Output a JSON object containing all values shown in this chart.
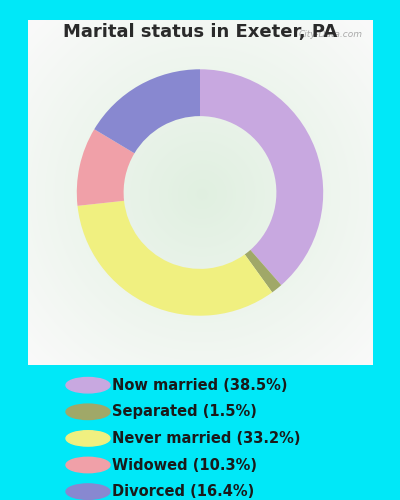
{
  "title": "Marital status in Exeter, PA",
  "title_fontsize": 13,
  "title_color": "#2a2a2a",
  "background_outer": "#00e8f8",
  "background_inner_color": "#e8f5ee",
  "slices": [
    {
      "label": "Now married (38.5%)",
      "value": 38.5,
      "color": "#c8a8e0"
    },
    {
      "label": "Separated (1.5%)",
      "value": 1.5,
      "color": "#a0a868"
    },
    {
      "label": "Never married (33.2%)",
      "value": 33.2,
      "color": "#f0f080"
    },
    {
      "label": "Widowed (10.3%)",
      "value": 10.3,
      "color": "#f0a0a8"
    },
    {
      "label": "Divorced (16.4%)",
      "value": 16.4,
      "color": "#8888d0"
    }
  ],
  "donut_width": 0.38,
  "legend_fontsize": 10.5,
  "watermark": "City-Data.com"
}
